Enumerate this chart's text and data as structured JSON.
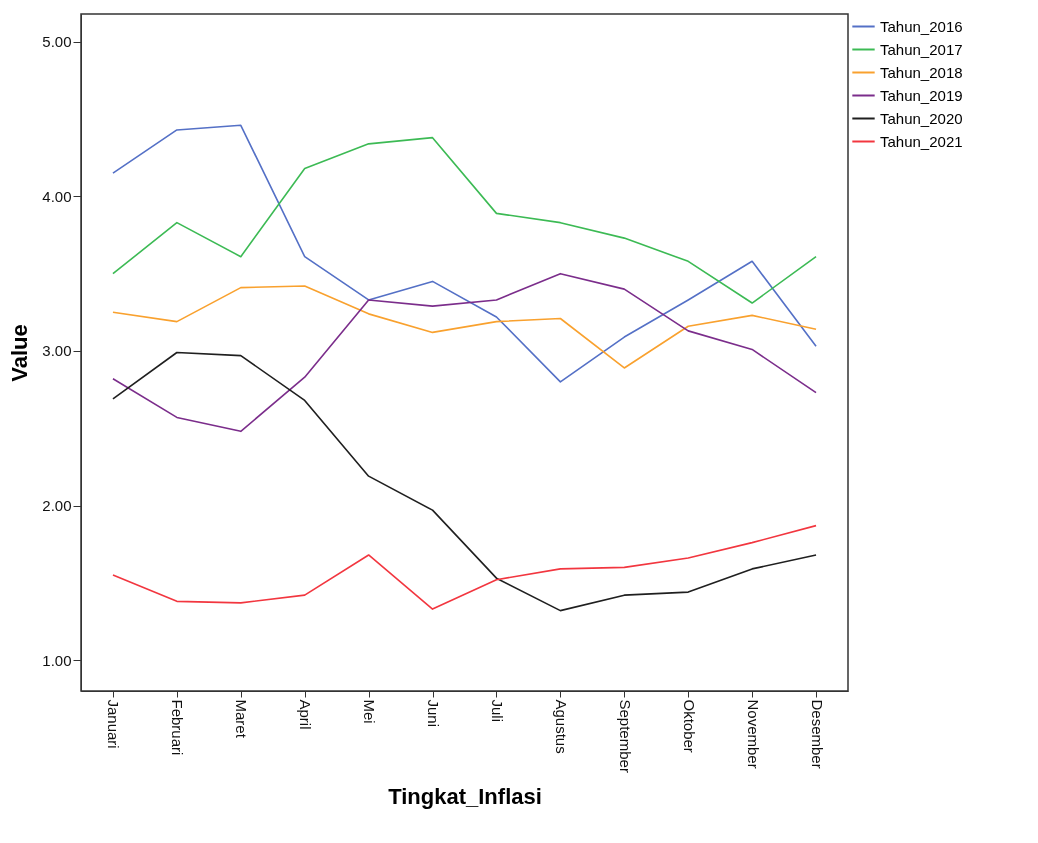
{
  "chart_data": {
    "type": "line",
    "xlabel": "Tingkat_Inflasi",
    "ylabel": "Value",
    "categories": [
      "Januari",
      "Februari",
      "Maret",
      "April",
      "Mei",
      "Juni",
      "Juli",
      "Agustus",
      "September",
      "Oktober",
      "November",
      "Desember"
    ],
    "ylim": [
      0.8,
      5.18
    ],
    "yticks": [
      {
        "value": 1,
        "label": "1.00"
      },
      {
        "value": 2,
        "label": "2.00"
      },
      {
        "value": 3,
        "label": "3.00"
      },
      {
        "value": 4,
        "label": "4.00"
      },
      {
        "value": 5,
        "label": "5.00"
      }
    ],
    "grid": false,
    "legend": "right",
    "marker": "none",
    "line_style": "solid",
    "series": [
      {
        "name": "Tahun_2016",
        "color": "#5470c6",
        "values": [
          4.15,
          4.43,
          4.46,
          3.61,
          3.33,
          3.45,
          3.22,
          2.8,
          3.09,
          3.33,
          3.58,
          3.03
        ]
      },
      {
        "name": "Tahun_2017",
        "color": "#3cba54",
        "values": [
          3.5,
          3.83,
          3.61,
          4.18,
          4.34,
          4.38,
          3.89,
          3.83,
          3.73,
          3.58,
          3.31,
          3.61
        ]
      },
      {
        "name": "Tahun_2018",
        "color": "#f9a12e",
        "values": [
          3.25,
          3.19,
          3.41,
          3.42,
          3.24,
          3.12,
          3.19,
          3.21,
          2.89,
          3.16,
          3.23,
          3.14
        ]
      },
      {
        "name": "Tahun_2019",
        "color": "#7b2d8b",
        "values": [
          2.82,
          2.57,
          2.48,
          2.83,
          3.33,
          3.29,
          3.33,
          3.5,
          3.4,
          3.13,
          3.01,
          2.73
        ]
      },
      {
        "name": "Tahun_2020",
        "color": "#1f1f1f",
        "values": [
          2.69,
          2.99,
          2.97,
          2.68,
          2.19,
          1.97,
          1.53,
          1.32,
          1.42,
          1.44,
          1.59,
          1.68
        ]
      },
      {
        "name": "Tahun_2021",
        "color": "#f2363f",
        "values": [
          1.55,
          1.38,
          1.37,
          1.42,
          1.68,
          1.33,
          1.52,
          1.59,
          1.6,
          1.66,
          1.76,
          1.87
        ]
      }
    ]
  }
}
